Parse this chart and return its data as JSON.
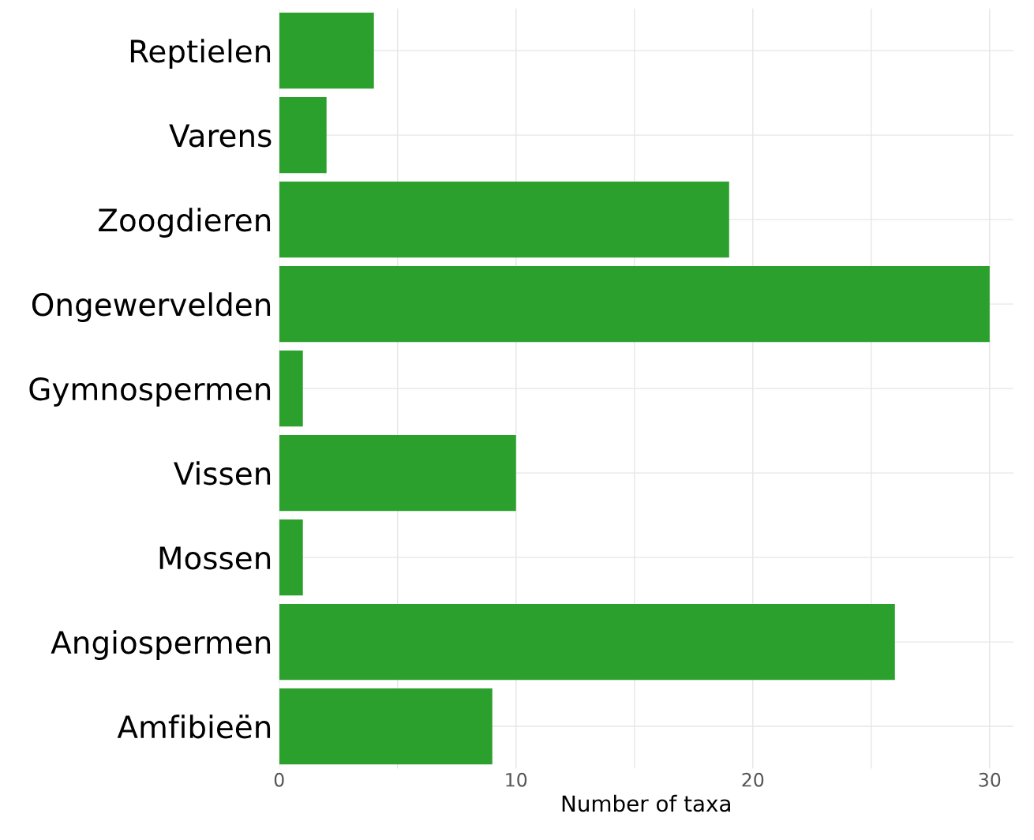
{
  "chart_data": {
    "type": "bar",
    "orientation": "horizontal",
    "categories": [
      "Reptielen",
      "Varens",
      "Zoogdieren",
      "Ongewervelden",
      "Gymnospermen",
      "Vissen",
      "Mossen",
      "Angiospermen",
      "Amfibieën"
    ],
    "values": [
      4,
      2,
      19,
      30,
      1,
      10,
      1,
      26,
      9
    ],
    "color": "#2ca02c",
    "xlabel": "Number of taxa",
    "xlim": [
      0,
      31
    ],
    "xticks": [
      0,
      {
        "value": 5,
        "label": null
      },
      10,
      {
        "value": 15,
        "label": null
      },
      20,
      {
        "value": 25,
        "label": null
      },
      30
    ],
    "grid": true,
    "legend": false
  }
}
